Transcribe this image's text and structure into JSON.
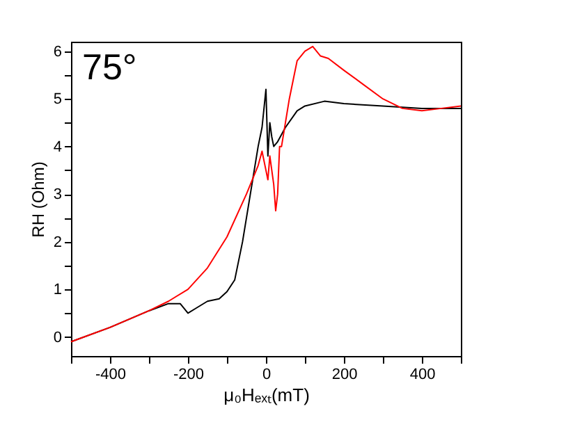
{
  "chart_data": {
    "type": "line",
    "xlabel": "μ₀Hₑₓₜ(mT)",
    "ylabel": "RH (Ohm)",
    "annotations": [
      "75°"
    ],
    "xlim": [
      -500,
      500
    ],
    "ylim": [
      -0.4,
      6.2
    ],
    "xticks": [
      {
        "value": -500,
        "label": null
      },
      -400,
      {
        "value": -300,
        "label": null
      },
      -200,
      {
        "value": -100,
        "label": null
      },
      0,
      {
        "value": 100,
        "label": null
      },
      200,
      {
        "value": 300,
        "label": null
      },
      400,
      {
        "value": 500,
        "label": null
      }
    ],
    "yticks": [
      0,
      {
        "value": 0.5,
        "label": null
      },
      1,
      {
        "value": 1.5,
        "label": null
      },
      2,
      {
        "value": 2.5,
        "label": null
      },
      3,
      {
        "value": 3.5,
        "label": null
      },
      4,
      {
        "value": 4.5,
        "label": null
      },
      5,
      {
        "value": 5.5,
        "label": null
      },
      6
    ],
    "series": [
      {
        "color": "#000000",
        "x": [
          -500,
          -400,
          -300,
          -250,
          -220,
          -200,
          -180,
          -150,
          -120,
          -100,
          -80,
          -60,
          -40,
          -30,
          -20,
          -10,
          0,
          5,
          10,
          15,
          20,
          30,
          50,
          80,
          100,
          150,
          200,
          300,
          400,
          500
        ],
        "values": [
          -0.1,
          0.2,
          0.55,
          0.7,
          0.7,
          0.5,
          0.6,
          0.75,
          0.8,
          0.95,
          1.2,
          2.0,
          3.0,
          3.5,
          4.0,
          4.4,
          5.2,
          3.8,
          4.5,
          4.2,
          4.0,
          4.1,
          4.4,
          4.75,
          4.85,
          4.95,
          4.9,
          4.85,
          4.8,
          4.8
        ]
      },
      {
        "color": "#ff0000",
        "x": [
          -500,
          -400,
          -300,
          -250,
          -200,
          -150,
          -100,
          -50,
          -20,
          -10,
          0,
          5,
          10,
          20,
          25,
          30,
          35,
          40,
          50,
          60,
          70,
          80,
          100,
          120,
          140,
          160,
          200,
          250,
          300,
          350,
          400,
          450,
          500
        ],
        "values": [
          -0.1,
          0.2,
          0.55,
          0.75,
          1.0,
          1.45,
          2.1,
          3.0,
          3.6,
          3.9,
          3.5,
          3.3,
          3.8,
          3.2,
          2.65,
          3.0,
          4.0,
          4.0,
          4.5,
          5.0,
          5.4,
          5.8,
          6.0,
          6.1,
          5.9,
          5.85,
          5.6,
          5.3,
          5.0,
          4.8,
          4.75,
          4.8,
          4.85
        ]
      }
    ]
  }
}
